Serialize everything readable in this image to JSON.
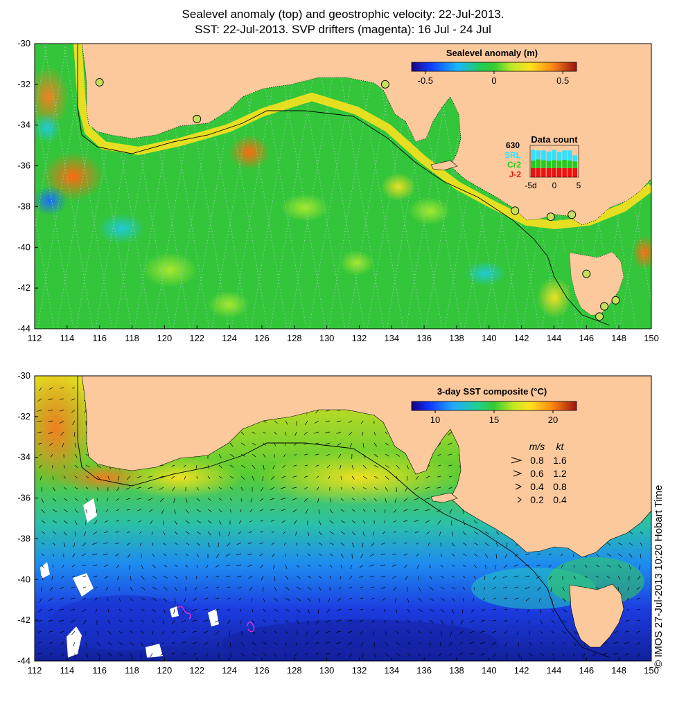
{
  "title_line1": "Sealevel anomaly (top) and geostrophic velocity: 22-Jul-2013.",
  "title_line2": "SST: 22-Jul-2013. SVP drifters (magenta): 16 Jul - 24 Jul",
  "colors": {
    "land": "#fcc99c",
    "ocean_mid": "#33cc33",
    "coast_contour": "#000000",
    "drifter": "#dd33dd",
    "tide_gauge": "#c6e05a"
  },
  "top_map": {
    "colorbar_title": "Sealevel anomaly (m)",
    "colorbar_ticks": [
      "-0.5",
      "0",
      "0.5"
    ],
    "colorbar_range": [
      -0.6,
      0.6
    ],
    "data_count": {
      "title": "Data count",
      "max_label": "630",
      "satellites": [
        {
          "name": "SRL",
          "color": "#33e0ff"
        },
        {
          "name": "Cr2",
          "color": "#22cc22"
        },
        {
          "name": "J-2",
          "color": "#ee1111"
        }
      ],
      "x_ticks": [
        "-5d",
        "0",
        "5"
      ],
      "bars": [
        {
          "day": -5,
          "j2": 0.3,
          "cr2": 0.25,
          "srl": 0.35
        },
        {
          "day": -4,
          "j2": 0.3,
          "cr2": 0.28,
          "srl": 0.3
        },
        {
          "day": -3,
          "j2": 0.3,
          "cr2": 0.26,
          "srl": 0.32
        },
        {
          "day": -2,
          "j2": 0.3,
          "cr2": 0.24,
          "srl": 0.3
        },
        {
          "day": -1,
          "j2": 0.3,
          "cr2": 0.26,
          "srl": 0.34
        },
        {
          "day": 0,
          "j2": 0.3,
          "cr2": 0.25,
          "srl": 0.28
        },
        {
          "day": 1,
          "j2": 0.3,
          "cr2": 0.27,
          "srl": 0.31
        },
        {
          "day": 2,
          "j2": 0.3,
          "cr2": 0.25,
          "srl": 0.33
        },
        {
          "day": 3,
          "j2": 0.3,
          "cr2": 0.22,
          "srl": 0.2
        }
      ]
    }
  },
  "bottom_map": {
    "colorbar_title": "3-day SST composite (°C)",
    "colorbar_ticks": [
      "10",
      "15",
      "20"
    ],
    "colorbar_range": [
      8,
      22
    ],
    "velocity_legend": {
      "unit_ms": "m/s",
      "unit_kt": "kt",
      "rows": [
        {
          "ms": "0.8",
          "kt": "1.6"
        },
        {
          "ms": "0.6",
          "kt": "1.2"
        },
        {
          "ms": "0.4",
          "kt": "0.8"
        },
        {
          "ms": "0.2",
          "kt": "0.4"
        }
      ]
    }
  },
  "axes": {
    "x_ticks": [
      "112",
      "114",
      "116",
      "118",
      "120",
      "122",
      "124",
      "126",
      "128",
      "130",
      "132",
      "134",
      "136",
      "138",
      "140",
      "142",
      "144",
      "146",
      "148",
      "150"
    ],
    "y_ticks": [
      "-30",
      "-32",
      "-34",
      "-36",
      "-38",
      "-40",
      "-42",
      "-44"
    ],
    "lon_range": [
      112,
      150
    ],
    "lat_range": [
      -30,
      -44
    ]
  },
  "tide_gauges": [
    {
      "lon": 116.0,
      "lat": -31.9
    },
    {
      "lon": 122.0,
      "lat": -33.7
    },
    {
      "lon": 133.6,
      "lat": -32.0
    },
    {
      "lon": 141.6,
      "lat": -38.2
    },
    {
      "lon": 143.8,
      "lat": -38.5
    },
    {
      "lon": 145.1,
      "lat": -38.4
    },
    {
      "lon": 146.0,
      "lat": -41.3
    },
    {
      "lon": 147.1,
      "lat": -42.9
    },
    {
      "lon": 147.8,
      "lat": -42.6
    },
    {
      "lon": 146.8,
      "lat": -43.4
    }
  ],
  "credit": "© IMOS 27-Jul-2013 10:20 Hobart Time"
}
